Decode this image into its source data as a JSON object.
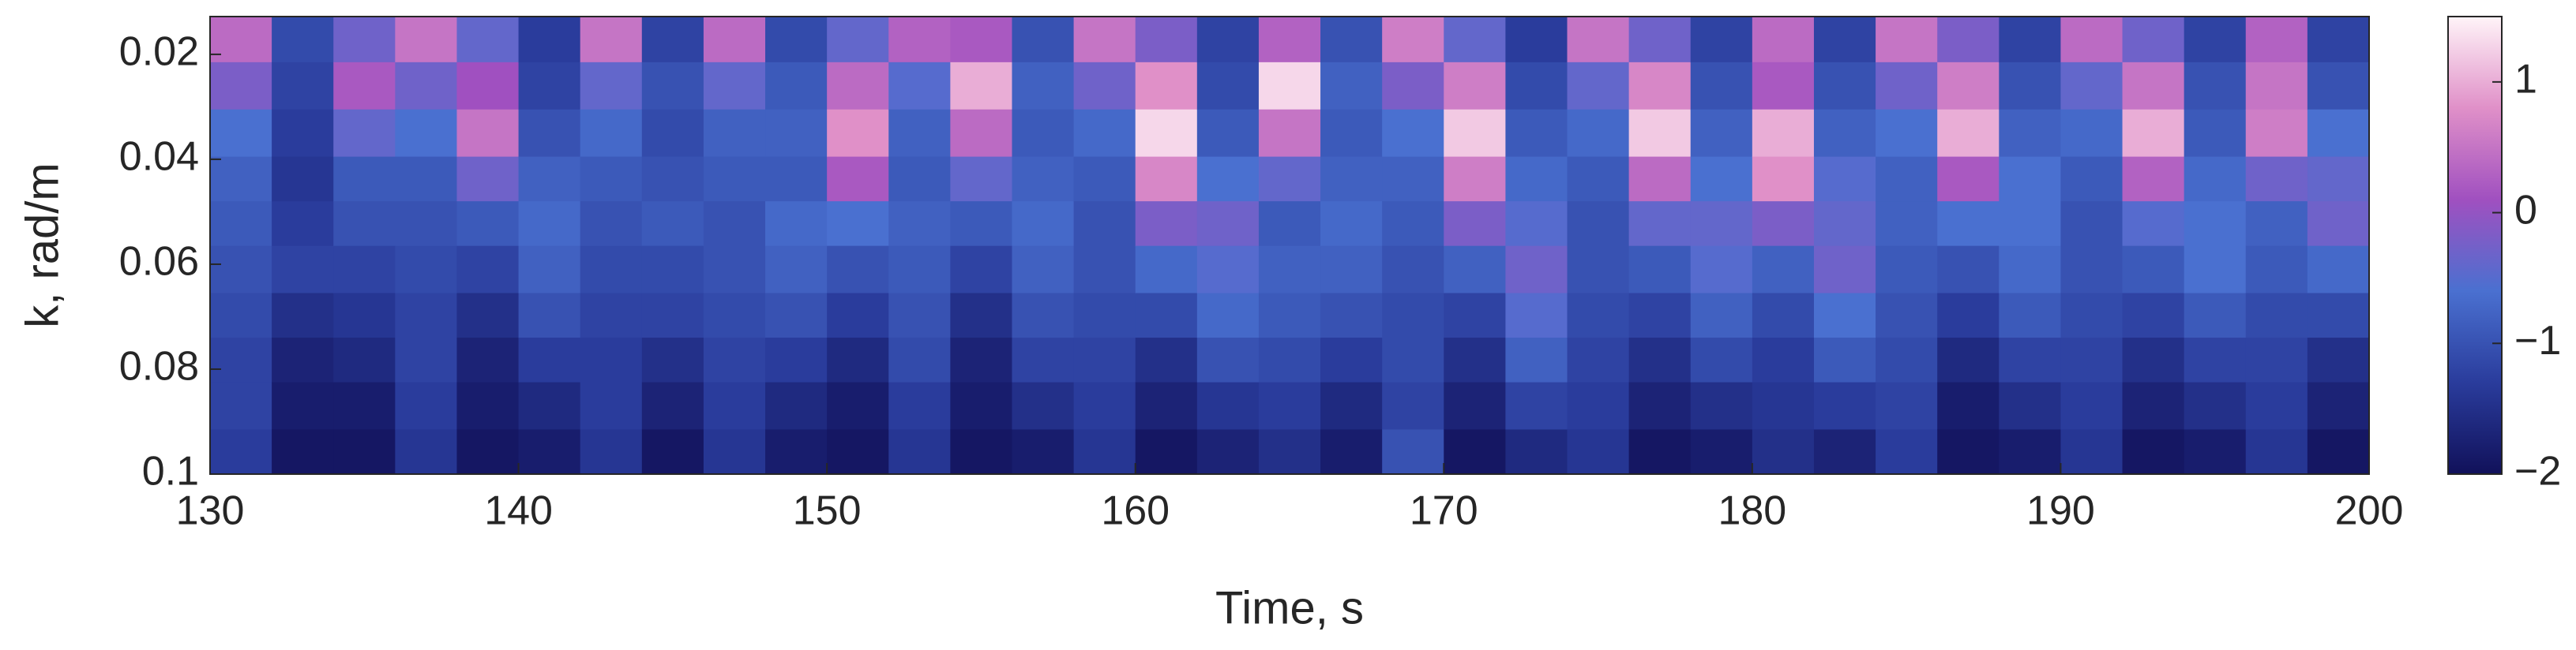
{
  "chart_data": {
    "type": "heatmap",
    "xlabel": "Time, s",
    "ylabel": "k, rad/m",
    "xlim": [
      130,
      200
    ],
    "xticks": [
      130,
      140,
      150,
      160,
      170,
      180,
      190,
      200
    ],
    "ylim": [
      0.1,
      0.0128
    ],
    "yticks": [
      0.02,
      0.04,
      0.06,
      0.08,
      0.1
    ],
    "clim": [
      -2,
      1.5
    ],
    "cticks": [
      {
        "value": -2,
        "label": "−2"
      },
      {
        "value": -1,
        "label": "−1"
      },
      0,
      1
    ],
    "colormap": [
      "#11115a",
      "#2a3c9c",
      "#4a70d0",
      "#a050c0",
      "#e090c8",
      "#fff4f8"
    ],
    "x": [
      131,
      133,
      135,
      137,
      139,
      141,
      143,
      145,
      147,
      149,
      151,
      153,
      155,
      157,
      159,
      161,
      163,
      165,
      167,
      169,
      171,
      173,
      175,
      177,
      179,
      181,
      183,
      185,
      187,
      189,
      191,
      193,
      195,
      197,
      199
    ],
    "y": [
      0.017,
      0.026,
      0.035,
      0.044,
      0.052,
      0.061,
      0.07,
      0.078,
      0.087,
      0.096
    ],
    "z": [
      [
        0.4,
        -0.2,
        -0.6,
        -0.8,
        -0.9,
        -1.0,
        -1.1,
        -1.2,
        -1.2,
        -1.3
      ],
      [
        -1.1,
        -1.2,
        -1.3,
        -1.4,
        -1.3,
        -1.2,
        -1.5,
        -1.7,
        -1.8,
        -1.9
      ],
      [
        -0.3,
        0.2,
        -0.4,
        -0.9,
        -1.0,
        -1.2,
        -1.4,
        -1.6,
        -1.8,
        -1.9
      ],
      [
        0.5,
        -0.3,
        -0.6,
        -0.9,
        -1.0,
        -1.1,
        -1.2,
        -1.2,
        -1.3,
        -1.4
      ],
      [
        -0.4,
        0.1,
        0.5,
        -0.3,
        -0.9,
        -1.2,
        -1.5,
        -1.7,
        -1.8,
        -1.9
      ],
      [
        -1.3,
        -1.2,
        -1.0,
        -0.8,
        -0.7,
        -0.8,
        -1.0,
        -1.3,
        -1.6,
        -1.8
      ],
      [
        0.5,
        -0.4,
        -0.7,
        -0.9,
        -1.0,
        -1.1,
        -1.2,
        -1.3,
        -1.3,
        -1.4
      ],
      [
        -1.2,
        -1.0,
        -1.1,
        -1.0,
        -0.9,
        -1.1,
        -1.2,
        -1.5,
        -1.7,
        -1.9
      ],
      [
        0.4,
        -0.4,
        -0.8,
        -0.9,
        -1.0,
        -1.0,
        -1.1,
        -1.2,
        -1.3,
        -1.4
      ],
      [
        -1.1,
        -0.9,
        -0.8,
        -0.9,
        -0.7,
        -0.8,
        -1.0,
        -1.3,
        -1.6,
        -1.8
      ],
      [
        -0.4,
        0.4,
        0.8,
        0.2,
        -0.6,
        -1.0,
        -1.3,
        -1.6,
        -1.8,
        -1.9
      ],
      [
        0.3,
        -0.5,
        -0.8,
        -0.9,
        -0.8,
        -0.9,
        -1.0,
        -1.1,
        -1.3,
        -1.4
      ],
      [
        0.2,
        1.0,
        0.4,
        -0.4,
        -0.9,
        -1.2,
        -1.5,
        -1.7,
        -1.8,
        -1.9
      ],
      [
        -1.0,
        -0.8,
        -0.9,
        -0.8,
        -0.7,
        -0.8,
        -1.0,
        -1.2,
        -1.5,
        -1.8
      ],
      [
        0.5,
        -0.3,
        -0.7,
        -0.9,
        -1.0,
        -1.0,
        -1.1,
        -1.2,
        -1.3,
        -1.4
      ],
      [
        -0.2,
        0.8,
        1.3,
        0.7,
        -0.2,
        -0.7,
        -1.1,
        -1.5,
        -1.7,
        -1.9
      ],
      [
        -1.2,
        -1.1,
        -0.9,
        -0.6,
        -0.3,
        -0.5,
        -0.7,
        -1.0,
        -1.4,
        -1.7
      ],
      [
        0.3,
        1.3,
        0.5,
        -0.4,
        -0.9,
        -0.8,
        -0.9,
        -1.1,
        -1.3,
        -1.5
      ],
      [
        -1.0,
        -0.8,
        -0.9,
        -0.8,
        -0.7,
        -0.8,
        -1.0,
        -1.3,
        -1.6,
        -1.8
      ],
      [
        0.6,
        -0.2,
        -0.6,
        -0.8,
        -0.9,
        -1.0,
        -1.1,
        -1.1,
        -1.2,
        -1.0
      ],
      [
        -0.4,
        0.6,
        1.2,
        0.6,
        -0.2,
        -0.8,
        -1.2,
        -1.5,
        -1.7,
        -1.9
      ],
      [
        -1.3,
        -1.1,
        -0.9,
        -0.7,
        -0.5,
        -0.3,
        -0.5,
        -0.8,
        -1.2,
        -1.6
      ],
      [
        0.5,
        -0.4,
        -0.7,
        -0.9,
        -1.0,
        -1.0,
        -1.1,
        -1.2,
        -1.3,
        -1.4
      ],
      [
        -0.3,
        0.7,
        1.2,
        0.4,
        -0.4,
        -0.9,
        -1.2,
        -1.5,
        -1.7,
        -1.9
      ],
      [
        -1.2,
        -1.0,
        -0.8,
        -0.6,
        -0.4,
        -0.5,
        -0.8,
        -1.1,
        -1.5,
        -1.8
      ],
      [
        0.4,
        0.2,
        1.0,
        0.8,
        -0.2,
        -0.8,
        -1.1,
        -1.3,
        -1.4,
        -1.5
      ],
      [
        -1.2,
        -1.0,
        -0.8,
        -0.5,
        -0.4,
        -0.3,
        -0.6,
        -0.9,
        -1.3,
        -1.7
      ],
      [
        0.5,
        -0.3,
        -0.6,
        -0.8,
        -0.8,
        -0.9,
        -1.0,
        -1.1,
        -1.2,
        -1.3
      ],
      [
        -0.2,
        0.6,
        1.0,
        0.2,
        -0.6,
        -1.0,
        -1.3,
        -1.6,
        -1.8,
        -1.9
      ],
      [
        -1.2,
        -1.0,
        -0.8,
        -0.6,
        -0.6,
        -0.7,
        -0.9,
        -1.2,
        -1.5,
        -1.8
      ],
      [
        0.4,
        -0.4,
        -0.7,
        -0.9,
        -1.0,
        -1.0,
        -1.1,
        -1.2,
        -1.3,
        -1.4
      ],
      [
        -0.3,
        0.5,
        1.0,
        0.3,
        -0.5,
        -0.9,
        -1.2,
        -1.5,
        -1.7,
        -1.9
      ],
      [
        -1.2,
        -1.0,
        -0.9,
        -0.7,
        -0.6,
        -0.6,
        -0.9,
        -1.2,
        -1.5,
        -1.8
      ],
      [
        0.3,
        0.5,
        0.6,
        -0.3,
        -0.8,
        -0.9,
        -1.1,
        -1.2,
        -1.3,
        -1.4
      ],
      [
        -1.2,
        -1.0,
        -0.6,
        -0.4,
        -0.3,
        -0.7,
        -1.1,
        -1.5,
        -1.7,
        -1.9
      ]
    ]
  }
}
